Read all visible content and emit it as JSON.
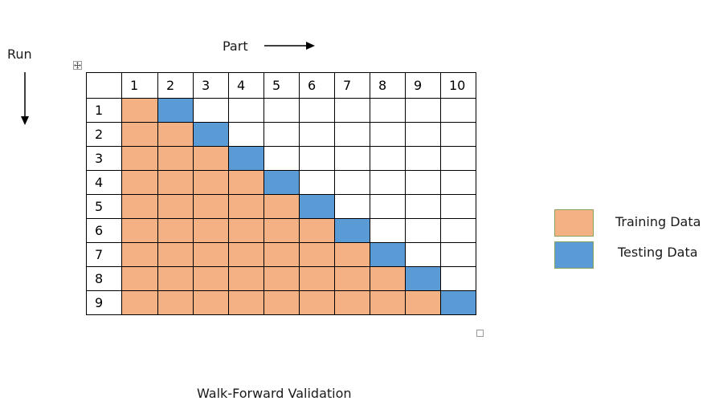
{
  "labels": {
    "run": "Run",
    "part": "Part",
    "caption": "Walk-Forward Validation"
  },
  "columns": [
    "1",
    "2",
    "3",
    "4",
    "5",
    "6",
    "7",
    "8",
    "9",
    "10"
  ],
  "rows": [
    "1",
    "2",
    "3",
    "4",
    "5",
    "6",
    "7",
    "8",
    "9"
  ],
  "row_fills": [
    [
      "train",
      "test",
      "empty",
      "empty",
      "empty",
      "empty",
      "empty",
      "empty",
      "empty",
      "empty"
    ],
    [
      "train",
      "train",
      "test",
      "empty",
      "empty",
      "empty",
      "empty",
      "empty",
      "empty",
      "empty"
    ],
    [
      "train",
      "train",
      "train",
      "test",
      "empty",
      "empty",
      "empty",
      "empty",
      "empty",
      "empty"
    ],
    [
      "train",
      "train",
      "train",
      "train",
      "test",
      "empty",
      "empty",
      "empty",
      "empty",
      "empty"
    ],
    [
      "train",
      "train",
      "train",
      "train",
      "train",
      "test",
      "empty",
      "empty",
      "empty",
      "empty"
    ],
    [
      "train",
      "train",
      "train",
      "train",
      "train",
      "train",
      "test",
      "empty",
      "empty",
      "empty"
    ],
    [
      "train",
      "train",
      "train",
      "train",
      "train",
      "train",
      "train",
      "test",
      "empty",
      "empty"
    ],
    [
      "train",
      "train",
      "train",
      "train",
      "train",
      "train",
      "train",
      "train",
      "test",
      "empty"
    ],
    [
      "train",
      "train",
      "train",
      "train",
      "train",
      "train",
      "train",
      "train",
      "train",
      "test"
    ]
  ],
  "legend": [
    {
      "key": "train",
      "label": "Training Data"
    },
    {
      "key": "test",
      "label": "Testing Data"
    }
  ],
  "colors": {
    "train": "#f4b183",
    "test": "#5b9bd5",
    "empty": "#ffffff"
  },
  "icons": {
    "table_move": "move-handle-icon",
    "table_resize": "resize-handle-icon",
    "run_arrow": "arrow-down-icon",
    "part_arrow": "arrow-right-icon"
  }
}
